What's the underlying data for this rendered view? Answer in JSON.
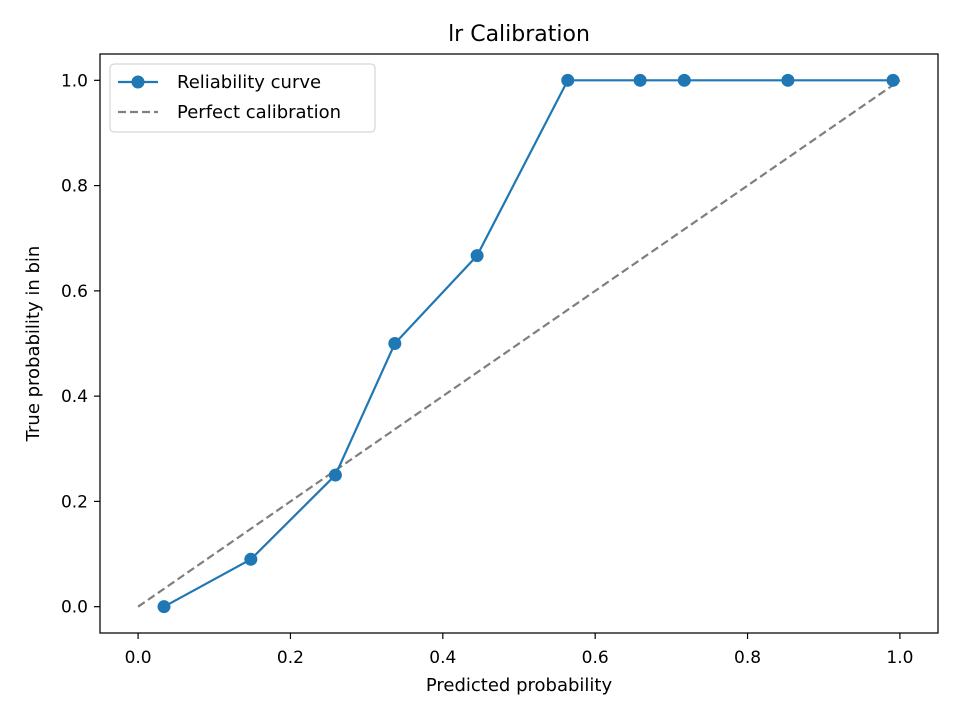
{
  "chart_data": {
    "type": "line",
    "title": "lr Calibration",
    "xlabel": "Predicted probability",
    "ylabel": "True probability in bin",
    "xlim": [
      -0.05,
      1.05
    ],
    "ylim": [
      -0.05,
      1.05
    ],
    "xticks": [
      0.0,
      0.2,
      0.4,
      0.6,
      0.8,
      1.0
    ],
    "xtick_labels": [
      "0.0",
      "0.2",
      "0.4",
      "0.6",
      "0.8",
      "1.0"
    ],
    "yticks": [
      0.0,
      0.2,
      0.4,
      0.6,
      0.8,
      1.0
    ],
    "ytick_labels": [
      "0.0",
      "0.2",
      "0.4",
      "0.6",
      "0.8",
      "1.0"
    ],
    "grid": false,
    "legend_position": "upper-left",
    "series": [
      {
        "name": "Reliability curve",
        "style": "solid-with-markers",
        "color": "#1f77b4",
        "x": [
          0.034,
          0.148,
          0.259,
          0.337,
          0.445,
          0.564,
          0.659,
          0.717,
          0.853,
          0.991
        ],
        "y": [
          0.0,
          0.09,
          0.25,
          0.5,
          0.667,
          1.0,
          1.0,
          1.0,
          1.0,
          1.0
        ]
      },
      {
        "name": "Perfect calibration",
        "style": "dashed",
        "color": "#7f7f7f",
        "x": [
          0.0,
          1.0
        ],
        "y": [
          0.0,
          1.0
        ]
      }
    ]
  }
}
